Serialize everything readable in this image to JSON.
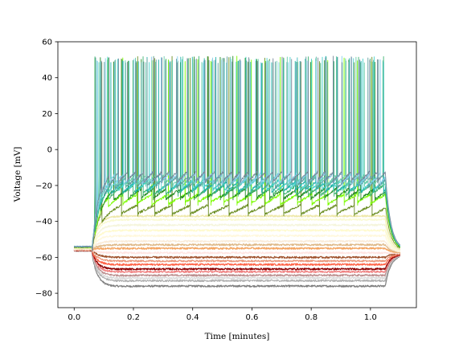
{
  "chart_data": {
    "type": "line",
    "title": "",
    "xlabel": "Time [minutes]",
    "ylabel": "Voltage [mV]",
    "xlim": [
      -0.055,
      1.155
    ],
    "ylim": [
      -88,
      60
    ],
    "xticks": [
      0.0,
      0.2,
      0.4,
      0.6,
      0.8,
      1.0
    ],
    "xtick_labels": [
      "0.0",
      "0.2",
      "0.4",
      "0.6",
      "0.8",
      "1.0"
    ],
    "yticks": [
      -80,
      -60,
      -40,
      -20,
      0,
      20,
      40,
      60
    ],
    "ytick_labels": [
      "−80",
      "−60",
      "−40",
      "−20",
      "0",
      "20",
      "40",
      "60"
    ],
    "grid": false,
    "legend": "none",
    "stimulus_on": 0.06,
    "stimulus_off": 1.05,
    "series": [
      {
        "color": "#7f7f7f",
        "baseline": -56.5,
        "steady": -76
      },
      {
        "color": "#b0b0b0",
        "baseline": -56.5,
        "steady": -73
      },
      {
        "color": "#d9d9d9",
        "baseline": -56.3,
        "steady": -71.5
      },
      {
        "color": "#bc8f8f",
        "baseline": -56.3,
        "steady": -70
      },
      {
        "color": "#f08080",
        "baseline": -56.2,
        "steady": -68
      },
      {
        "color": "#8b0000",
        "baseline": -56.2,
        "steady": -66.5
      },
      {
        "color": "#ff6347",
        "baseline": -56,
        "steady": -64
      },
      {
        "color": "#e9967a",
        "baseline": -56,
        "steady": -62
      },
      {
        "color": "#a0522d",
        "baseline": -55.8,
        "steady": -60
      },
      {
        "color": "#ffe4e1",
        "baseline": -55.8,
        "steady": -57.5
      },
      {
        "color": "#f4a460",
        "baseline": -55.5,
        "steady": -55
      },
      {
        "color": "#deb887",
        "baseline": -55.5,
        "steady": -53
      },
      {
        "color": "#faebd7",
        "baseline": -55.3,
        "steady": -51
      },
      {
        "color": "#fff8dc",
        "baseline": -55.2,
        "steady": -48
      },
      {
        "color": "#fffacd",
        "baseline": -55,
        "steady": -45
      },
      {
        "color": "#f5f5dc",
        "baseline": -55,
        "steady": -42
      },
      {
        "color": "#fafad2",
        "baseline": -54.8,
        "steady": -39
      },
      {
        "color": "#eee8aa",
        "baseline": -54.8,
        "steady": -37
      },
      {
        "color": "#6b8e23",
        "baseline": -54.5,
        "steady": -31,
        "spiking": true
      },
      {
        "color": "#7cfc00",
        "baseline": -54.3,
        "steady": -25,
        "spiking": true
      },
      {
        "color": "#228b22",
        "baseline": -54.2,
        "steady": -22,
        "spiking": true
      },
      {
        "color": "#3cb371",
        "baseline": -54,
        "steady": -20,
        "spiking": true
      },
      {
        "color": "#20b2aa",
        "baseline": -54,
        "steady": -18,
        "spiking": true
      },
      {
        "color": "#48d1cc",
        "baseline": -54,
        "steady": -17,
        "spiking": true
      },
      {
        "color": "#5f9ea0",
        "baseline": -54,
        "steady": -15.5,
        "spiking": true
      },
      {
        "color": "#66cdaa",
        "baseline": -54,
        "steady": -14.5,
        "spiking": true
      },
      {
        "color": "#87ceeb",
        "baseline": -54,
        "steady": -13.5,
        "spiking": true
      },
      {
        "color": "#778899",
        "baseline": -54,
        "steady": -12.5,
        "spiking": true
      }
    ]
  }
}
